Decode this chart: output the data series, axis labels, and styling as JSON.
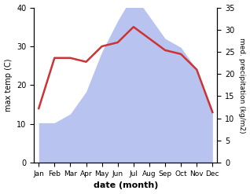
{
  "months": [
    "Jan",
    "Feb",
    "Mar",
    "Apr",
    "May",
    "Jun",
    "Jul",
    "Aug",
    "Sep",
    "Oct",
    "Nov",
    "Dec"
  ],
  "max_temp_C": [
    14,
    27,
    27,
    26,
    30,
    31,
    35,
    32,
    29,
    28,
    24,
    13
  ],
  "precipitation_kg": [
    9,
    9,
    11,
    16,
    25,
    32,
    38,
    33,
    28,
    26,
    21,
    12
  ],
  "temp_ylim": [
    0,
    40
  ],
  "precip_ylim": [
    0,
    35
  ],
  "temp_color": "#cc3333",
  "precip_fill_color": "#b8c4ef",
  "xlabel": "date (month)",
  "ylabel_left": "max temp (C)",
  "ylabel_right": "med. precipitation (kg/m2)",
  "bg_color": "#ffffff"
}
